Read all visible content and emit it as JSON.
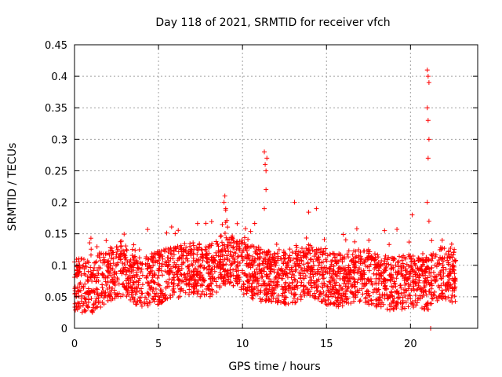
{
  "chart_data": {
    "type": "scatter",
    "title": "Day 118 of 2021, SRMTID for receiver vfch",
    "xlabel": "GPS time / hours",
    "ylabel": "SRMTID / TECUs",
    "xlim": [
      0,
      24
    ],
    "ylim": [
      0,
      0.45
    ],
    "xticks": [
      0,
      5,
      10,
      15,
      20
    ],
    "xtick_labels": [
      "0",
      "5",
      "10",
      "15",
      "20"
    ],
    "yticks": [
      0,
      0.05,
      0.1,
      0.15,
      0.2,
      0.25,
      0.3,
      0.35,
      0.4,
      0.45
    ],
    "ytick_labels": [
      "0",
      "0.05",
      "0.1",
      "0.15",
      "0.2",
      "0.25",
      "0.3",
      "0.35",
      "0.4",
      "0.45"
    ],
    "grid": true,
    "marker": "plus",
    "color": "#ff0000",
    "point_count_approx": 2600,
    "baseline_profile": [
      {
        "x": 0,
        "y": 0.07
      },
      {
        "x": 1,
        "y": 0.065
      },
      {
        "x": 2,
        "y": 0.085
      },
      {
        "x": 3,
        "y": 0.09
      },
      {
        "x": 4,
        "y": 0.075
      },
      {
        "x": 5,
        "y": 0.08
      },
      {
        "x": 6,
        "y": 0.09
      },
      {
        "x": 7,
        "y": 0.095
      },
      {
        "x": 8,
        "y": 0.09
      },
      {
        "x": 9,
        "y": 0.11
      },
      {
        "x": 10,
        "y": 0.095
      },
      {
        "x": 11,
        "y": 0.085
      },
      {
        "x": 12,
        "y": 0.08
      },
      {
        "x": 13,
        "y": 0.08
      },
      {
        "x": 14,
        "y": 0.095
      },
      {
        "x": 15,
        "y": 0.08
      },
      {
        "x": 16,
        "y": 0.075
      },
      {
        "x": 17,
        "y": 0.085
      },
      {
        "x": 18,
        "y": 0.075
      },
      {
        "x": 19,
        "y": 0.07
      },
      {
        "x": 20,
        "y": 0.075
      },
      {
        "x": 21,
        "y": 0.07
      },
      {
        "x": 22,
        "y": 0.09
      },
      {
        "x": 22.7,
        "y": 0.08
      }
    ],
    "notable_points": [
      {
        "x": 8.9,
        "y": 0.2
      },
      {
        "x": 8.95,
        "y": 0.21
      },
      {
        "x": 9.0,
        "y": 0.19
      },
      {
        "x": 11.3,
        "y": 0.28
      },
      {
        "x": 11.35,
        "y": 0.26
      },
      {
        "x": 11.4,
        "y": 0.25
      },
      {
        "x": 11.45,
        "y": 0.27
      },
      {
        "x": 11.4,
        "y": 0.22
      },
      {
        "x": 11.3,
        "y": 0.19
      },
      {
        "x": 13.1,
        "y": 0.2
      },
      {
        "x": 14.4,
        "y": 0.19
      },
      {
        "x": 20.1,
        "y": 0.18
      },
      {
        "x": 21.0,
        "y": 0.41
      },
      {
        "x": 21.05,
        "y": 0.4
      },
      {
        "x": 21.1,
        "y": 0.39
      },
      {
        "x": 21.0,
        "y": 0.35
      },
      {
        "x": 21.05,
        "y": 0.33
      },
      {
        "x": 21.1,
        "y": 0.3
      },
      {
        "x": 21.05,
        "y": 0.27
      },
      {
        "x": 21.0,
        "y": 0.2
      },
      {
        "x": 21.1,
        "y": 0.17
      },
      {
        "x": 21.2,
        "y": 0.0
      }
    ]
  }
}
